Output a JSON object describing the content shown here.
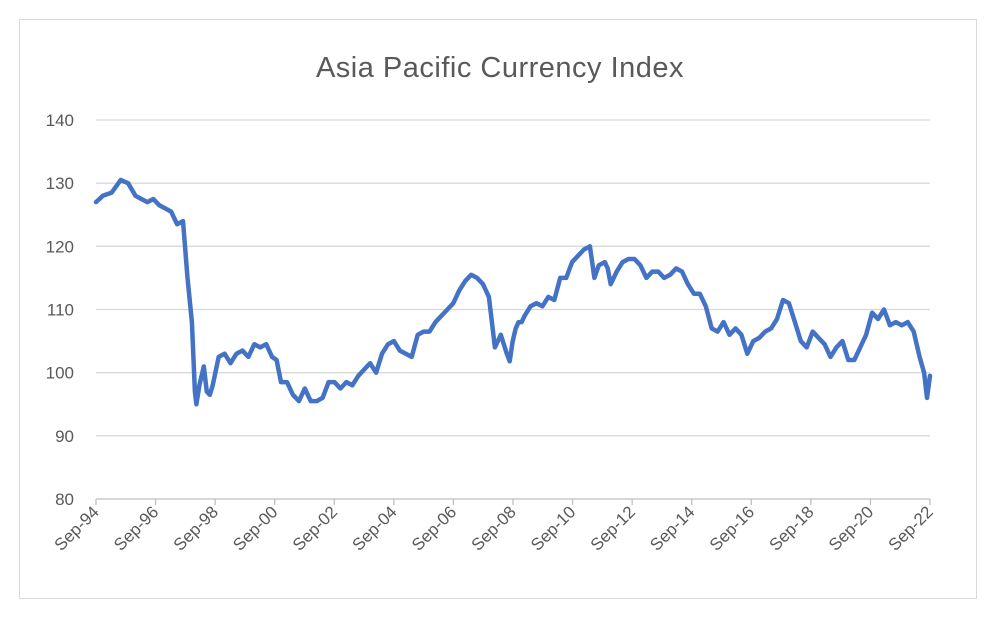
{
  "chart_data": {
    "type": "line",
    "title": "Asia Pacific Currency Index",
    "xlabel": "",
    "ylabel": "",
    "ylim": [
      80,
      140
    ],
    "y_ticks": [
      80,
      90,
      100,
      110,
      120,
      130,
      140
    ],
    "x_tick_labels": [
      "Sep-94",
      "Sep-96",
      "Sep-98",
      "Sep-00",
      "Sep-02",
      "Sep-04",
      "Sep-06",
      "Sep-08",
      "Sep-10",
      "Sep-12",
      "Sep-14",
      "Sep-16",
      "Sep-18",
      "Sep-20",
      "Sep-22"
    ],
    "grid": "horizontal",
    "legend": "none",
    "line_color": "#4472c4",
    "series": [
      {
        "x": [
          1994.67,
          1994.9,
          1995.2,
          1995.5,
          1995.75,
          1996.0,
          1996.2,
          1996.4,
          1996.6,
          1996.8,
          1997.0,
          1997.2,
          1997.4,
          1997.6,
          1997.75,
          1997.9,
          1998.0,
          1998.05,
          1998.15,
          1998.3,
          1998.4,
          1998.5,
          1998.6,
          1998.8,
          1999.0,
          1999.2,
          1999.4,
          1999.6,
          1999.8,
          2000.0,
          2000.2,
          2000.4,
          2000.6,
          2000.75,
          2000.9,
          2001.1,
          2001.3,
          2001.5,
          2001.7,
          2001.9,
          2002.1,
          2002.3,
          2002.5,
          2002.7,
          2002.9,
          2003.1,
          2003.3,
          2003.5,
          2003.7,
          2003.9,
          2004.1,
          2004.3,
          2004.5,
          2004.7,
          2004.9,
          2005.1,
          2005.3,
          2005.5,
          2005.7,
          2005.9,
          2006.1,
          2006.3,
          2006.5,
          2006.7,
          2006.9,
          2007.1,
          2007.3,
          2007.5,
          2007.7,
          2007.9,
          2008.1,
          2008.3,
          2008.5,
          2008.6,
          2008.7,
          2008.8,
          2008.9,
          2009.0,
          2009.1,
          2009.3,
          2009.5,
          2009.7,
          2009.9,
          2010.1,
          2010.3,
          2010.5,
          2010.7,
          2010.9,
          2011.1,
          2011.3,
          2011.45,
          2011.6,
          2011.8,
          2011.9,
          2012.0,
          2012.2,
          2012.4,
          2012.6,
          2012.8,
          2013.0,
          2013.2,
          2013.4,
          2013.6,
          2013.8,
          2014.0,
          2014.2,
          2014.4,
          2014.6,
          2014.8,
          2015.0,
          2015.2,
          2015.4,
          2015.6,
          2015.8,
          2016.0,
          2016.2,
          2016.4,
          2016.6,
          2016.8,
          2017.0,
          2017.2,
          2017.4,
          2017.6,
          2017.8,
          2018.0,
          2018.2,
          2018.4,
          2018.6,
          2018.8,
          2019.0,
          2019.2,
          2019.4,
          2019.6,
          2019.8,
          2020.0,
          2020.2,
          2020.4,
          2020.6,
          2020.8,
          2021.0,
          2021.2,
          2021.4,
          2021.6,
          2021.8,
          2022.0,
          2022.2,
          2022.4,
          2022.55,
          2022.65,
          2022.75
        ],
        "y": [
          127.0,
          128.0,
          128.5,
          130.5,
          130.0,
          128.0,
          127.5,
          127.0,
          127.5,
          126.5,
          126.0,
          125.5,
          123.5,
          124.0,
          115.0,
          108.0,
          97.0,
          95.0,
          98.0,
          101.0,
          97.0,
          96.5,
          98.0,
          102.5,
          103.0,
          101.5,
          103.0,
          103.5,
          102.5,
          104.5,
          104.0,
          104.5,
          102.5,
          102.0,
          98.5,
          98.5,
          96.5,
          95.5,
          97.5,
          95.5,
          95.5,
          96.0,
          98.5,
          98.5,
          97.5,
          98.5,
          98.0,
          99.5,
          100.5,
          101.5,
          100.0,
          103.0,
          104.5,
          105.0,
          103.5,
          103.0,
          102.5,
          106.0,
          106.5,
          106.5,
          108.0,
          109.0,
          110.0,
          111.0,
          113.0,
          114.5,
          115.5,
          115.0,
          114.0,
          112.0,
          104.0,
          106.0,
          103.0,
          101.8,
          105.0,
          107.0,
          108.0,
          108.0,
          109.0,
          110.5,
          111.0,
          110.5,
          112.0,
          111.5,
          115.0,
          115.0,
          117.5,
          118.5,
          119.5,
          120.0,
          115.0,
          117.0,
          117.5,
          116.5,
          114.0,
          116.0,
          117.5,
          118.0,
          118.0,
          117.0,
          115.0,
          116.0,
          116.0,
          115.0,
          115.5,
          116.5,
          116.0,
          114.0,
          112.5,
          112.5,
          110.5,
          107.0,
          106.5,
          108.0,
          106.0,
          107.0,
          106.0,
          103.0,
          105.0,
          105.5,
          106.5,
          107.0,
          108.5,
          111.5,
          111.0,
          108.0,
          105.0,
          104.0,
          106.5,
          105.5,
          104.5,
          102.5,
          104.0,
          105.0,
          102.0,
          102.0,
          104.0,
          106.0,
          109.5,
          108.5,
          110.0,
          107.5,
          108.0,
          107.5,
          108.0,
          106.5,
          102.5,
          100.0,
          96.0,
          99.5
        ]
      }
    ]
  }
}
